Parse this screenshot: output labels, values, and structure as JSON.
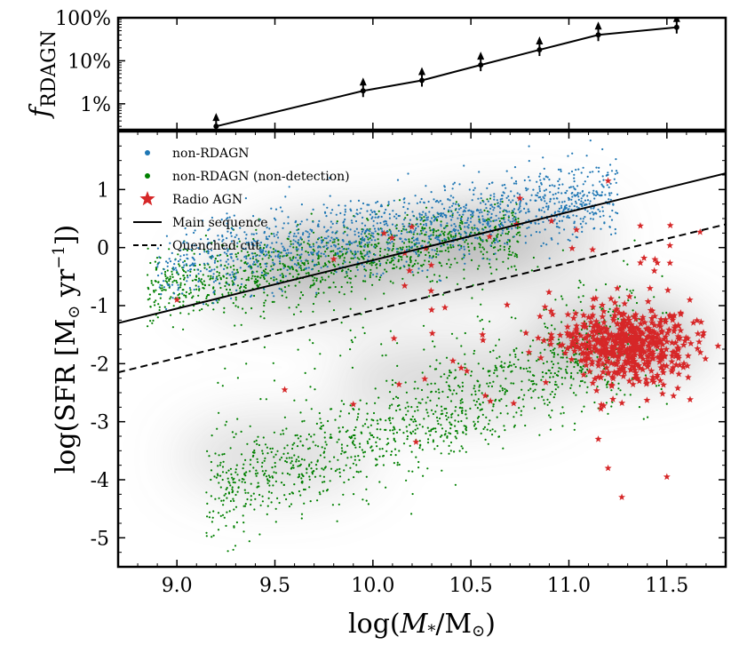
{
  "chart_data": [
    {
      "type": "line",
      "panel": "top",
      "ylabel_main": "f",
      "ylabel_sub": "RDAGN",
      "yscale": "log",
      "ylim_percent": [
        0.25,
        100
      ],
      "ytick_labels": [
        "1%",
        "10%",
        "100%"
      ],
      "ytick_values_percent": [
        1,
        10,
        100
      ],
      "xlim": [
        8.7,
        11.8
      ],
      "x": [
        9.2,
        9.95,
        10.25,
        10.55,
        10.85,
        11.15,
        11.55
      ],
      "y_percent": [
        0.3,
        2.0,
        3.5,
        8.0,
        18.0,
        40.0,
        60.0
      ],
      "lower_limits": true,
      "color": "#000000"
    },
    {
      "type": "scatter",
      "panel": "bottom",
      "xlabel": "log(M*/M⊙)",
      "ylabel": "log(SFR [M⊙ yr⁻¹])",
      "xlim": [
        8.7,
        11.8
      ],
      "ylim": [
        -5.5,
        2.0
      ],
      "xtick_labels": [
        "9.0",
        "9.5",
        "10.0",
        "10.5",
        "11.0",
        "11.5"
      ],
      "xtick_values": [
        9.0,
        9.5,
        10.0,
        10.5,
        11.0,
        11.5
      ],
      "ytick_labels": [
        "1",
        "0",
        "-1",
        "-2",
        "-3",
        "-4",
        "-5"
      ],
      "ytick_values": [
        1,
        0,
        -1,
        -2,
        -3,
        -4,
        -5
      ],
      "legend_position": "top-left",
      "legend": {
        "non_rdagn": "non-RDAGN",
        "non_detection": "non-RDAGN (non-detection)",
        "radio_agn": "Radio AGN",
        "main_sequence": "Main sequence",
        "quenched_cut": "Quenched cut"
      },
      "series": [
        {
          "key": "non_rdagn",
          "marker": "dot",
          "color": "#1f77b4",
          "count_approx": 1500,
          "distribution": "along main sequence, x 8.9-11.3, y about 0.5x-4.6"
        },
        {
          "key": "non_detection",
          "marker": "dot",
          "color": "#008000",
          "count_approx": 2200,
          "distribution": "star-forming cloud x 8.9-10.6 near y -0.6 to 0.2; quiescent sequence from (9.2,-4.3) to (11.3,-1.6)"
        },
        {
          "key": "radio_agn",
          "marker": "star",
          "color": "#d62728",
          "count_approx": 600,
          "distribution": "mostly x 10.9-11.75, y -2.6 to -0.9, concentrated near (11.3,-1.6); sparse elsewhere"
        }
      ],
      "lines": [
        {
          "key": "main_sequence",
          "style": "solid",
          "color": "#000000",
          "x": [
            8.7,
            11.8
          ],
          "y": [
            -1.3,
            1.28
          ]
        },
        {
          "key": "quenched_cut",
          "style": "dashed",
          "color": "#000000",
          "x": [
            8.7,
            11.8
          ],
          "y": [
            -2.15,
            0.4
          ]
        }
      ]
    }
  ]
}
